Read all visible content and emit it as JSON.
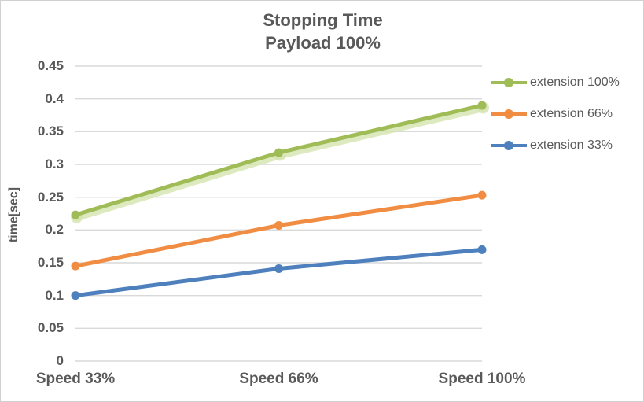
{
  "frame": {
    "background": "#FFFFFF",
    "border_color": "#D1D1D1"
  },
  "chart_data": {
    "type": "line",
    "title_lines": [
      "Stopping Time",
      "Payload 100%"
    ],
    "categories": [
      "Speed 33%",
      "Speed 66%",
      "Speed 100%"
    ],
    "series": [
      {
        "name": "extension 100%",
        "color": "#A0BC57",
        "glow_color": "#D5E3AF",
        "values": [
          0.223,
          0.318,
          0.39
        ]
      },
      {
        "name": "extension 66%",
        "color": "#F18C43",
        "values": [
          0.145,
          0.207,
          0.253
        ]
      },
      {
        "name": "extension 33%",
        "color": "#4E80BD",
        "values": [
          0.1,
          0.141,
          0.17
        ]
      }
    ],
    "xlabel": "",
    "ylabel": "time[sec]",
    "ylim": [
      0,
      0.45
    ],
    "ytick_step": 0.05,
    "yticks": [
      "0",
      "0.05",
      "0.1",
      "0.15",
      "0.2",
      "0.25",
      "0.3",
      "0.35",
      "0.4",
      "0.45"
    ],
    "grid": true,
    "gridline_color": "#D9D9D9",
    "text_color": "#595959",
    "legend_position": "right-top",
    "marker": "circle"
  }
}
